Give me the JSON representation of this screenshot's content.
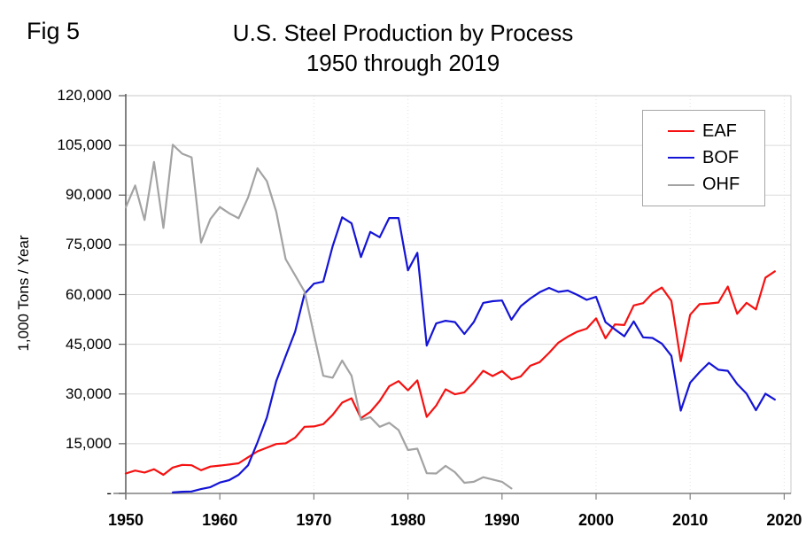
{
  "figure": {
    "label": "Fig 5"
  },
  "title": {
    "line1": "U.S. Steel Production by Process",
    "line2": "1950 through 2019"
  },
  "chart_data": {
    "type": "line",
    "title": "U.S. Steel Production by Process",
    "subtitle": "1950 through 2019",
    "xlabel": "",
    "ylabel": "1,000 Tons / Year",
    "xlim": [
      1950,
      2020
    ],
    "ylim": [
      0,
      120000
    ],
    "grid": true,
    "legend_position": "top-right",
    "x_ticks": [
      1950,
      1960,
      1970,
      1980,
      1990,
      2000,
      2010,
      2020
    ],
    "y_ticks": [
      0,
      15000,
      30000,
      45000,
      60000,
      75000,
      90000,
      105000,
      120000
    ],
    "y_tick_labels": [
      "-",
      "15,000",
      "30,000",
      "45,000",
      "60,000",
      "75,000",
      "90,000",
      "105,000",
      "120,000"
    ],
    "years": [
      1950,
      1951,
      1952,
      1953,
      1954,
      1955,
      1956,
      1957,
      1958,
      1959,
      1960,
      1961,
      1962,
      1963,
      1964,
      1965,
      1966,
      1967,
      1968,
      1969,
      1970,
      1971,
      1972,
      1973,
      1974,
      1975,
      1976,
      1977,
      1978,
      1979,
      1980,
      1981,
      1982,
      1983,
      1984,
      1985,
      1986,
      1987,
      1988,
      1989,
      1990,
      1991,
      1992,
      1993,
      1994,
      1995,
      1996,
      1997,
      1998,
      1999,
      2000,
      2001,
      2002,
      2003,
      2004,
      2005,
      2006,
      2007,
      2008,
      2009,
      2010,
      2011,
      2012,
      2013,
      2014,
      2015,
      2016,
      2017,
      2018,
      2019
    ],
    "series": [
      {
        "name": "EAF",
        "color": "#f51111",
        "values": [
          6000,
          6900,
          6300,
          7300,
          5600,
          7800,
          8600,
          8500,
          7000,
          8100,
          8400,
          8700,
          9100,
          10900,
          12700,
          13800,
          14900,
          15100,
          16800,
          20100,
          20200,
          20900,
          23700,
          27400,
          28700,
          22700,
          24600,
          27900,
          32300,
          33900,
          31100,
          34100,
          23100,
          26500,
          31400,
          29900,
          30500,
          33500,
          37000,
          35400,
          36900,
          34400,
          35300,
          38500,
          39600,
          42400,
          45500,
          47300,
          48800,
          49700,
          52800,
          46800,
          51000,
          50800,
          56700,
          57400,
          60400,
          62100,
          58100,
          39900,
          53900,
          57100,
          57300,
          57600,
          62400,
          54200,
          57500,
          55500,
          65100,
          67000
        ]
      },
      {
        "name": "BOF",
        "color": "#1414d6",
        "values": [
          null,
          null,
          null,
          null,
          null,
          300,
          500,
          600,
          1300,
          1900,
          3300,
          4000,
          5600,
          8500,
          15400,
          22900,
          33900,
          41400,
          48800,
          60200,
          63300,
          63900,
          74600,
          83300,
          81500,
          71300,
          78900,
          77300,
          83100,
          83100,
          67300,
          72600,
          44600,
          51300,
          52100,
          51700,
          48100,
          51700,
          57500,
          58000,
          58200,
          52400,
          56500,
          58800,
          60700,
          62000,
          60800,
          61200,
          59900,
          58400,
          59300,
          51700,
          49500,
          47400,
          51900,
          47100,
          46900,
          45200,
          41500,
          25000,
          33400,
          36600,
          39400,
          37300,
          37000,
          33000,
          30100,
          25100,
          30100,
          28300
        ]
      },
      {
        "name": "OHF",
        "color": "#a3a3a3",
        "values": [
          86300,
          92900,
          82500,
          100000,
          80100,
          105200,
          102500,
          101400,
          75700,
          82800,
          86400,
          84500,
          83000,
          89300,
          98100,
          94200,
          85000,
          70700,
          65800,
          60900,
          48000,
          35500,
          34900,
          40100,
          35500,
          22200,
          23000,
          20100,
          21300,
          19100,
          13100,
          13500,
          6100,
          6000,
          8300,
          6400,
          3200,
          3500,
          4900,
          4200,
          3500,
          1500,
          null,
          null,
          null,
          null,
          null,
          null,
          null,
          null,
          null,
          null,
          null,
          null,
          null,
          null,
          null,
          null,
          null,
          null,
          null,
          null,
          null,
          null,
          null,
          null,
          null,
          null,
          null,
          null
        ]
      }
    ]
  }
}
